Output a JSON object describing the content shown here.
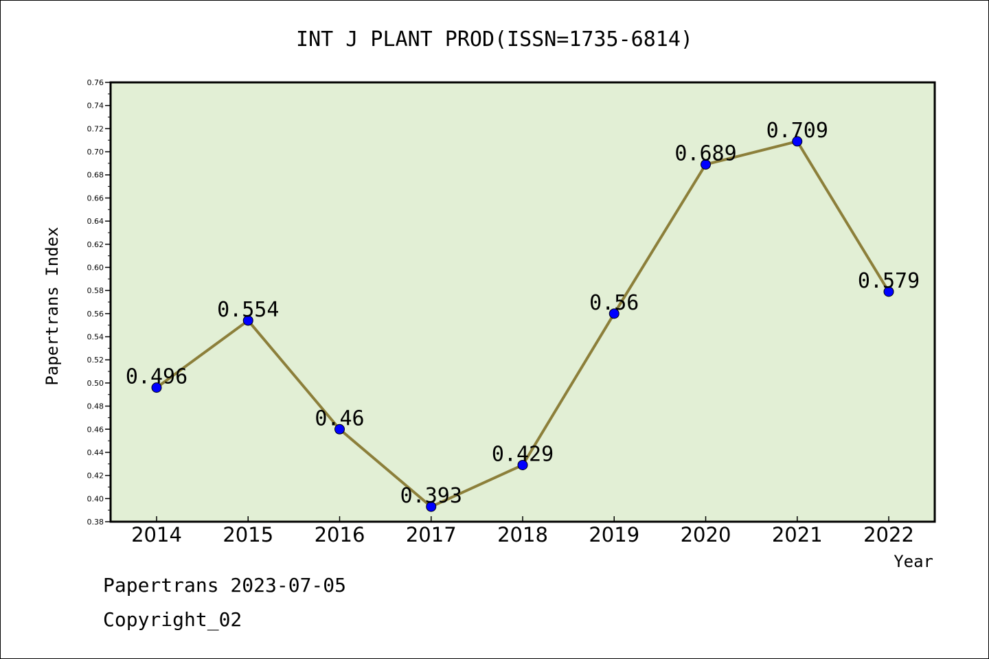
{
  "chart_data": {
    "type": "line",
    "title": "INT J PLANT PROD(ISSN=1735-6814)",
    "xlabel": "Year",
    "ylabel": "Papertrans Index",
    "categories": [
      "2014",
      "2015",
      "2016",
      "2017",
      "2018",
      "2019",
      "2020",
      "2021",
      "2022"
    ],
    "series": [
      {
        "values": [
          0.496,
          0.554,
          0.46,
          0.393,
          0.429,
          0.56,
          0.689,
          0.709,
          0.579
        ],
        "labels": [
          "0.496",
          "0.554",
          "0.46",
          "0.393",
          "0.429",
          "0.56",
          "0.689",
          "0.709",
          "0.579"
        ]
      }
    ],
    "ylim": [
      0.38,
      0.76
    ],
    "ytick_step": 0.02,
    "grid": false,
    "legend": "none",
    "colors": {
      "plot_background": "#e2efd5",
      "line": "#8c7f3a",
      "marker": "#0000ff",
      "axis": "#000000"
    }
  },
  "footer": {
    "date_text": "Papertrans 2023-07-05",
    "copyright_text": "Copyright_02"
  }
}
